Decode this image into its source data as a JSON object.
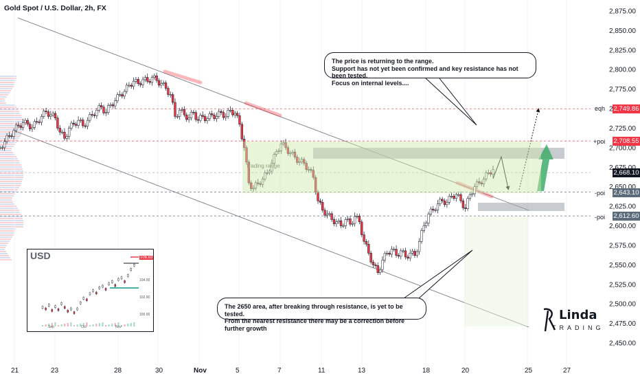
{
  "title": "Gold Spot / U.S. Dollar, 2h, FX",
  "callouts": {
    "top": [
      "The price is returning to the range.",
      "Support has not yet been confirmed and key resistance has not been tested.",
      "Focus on internal levels...."
    ],
    "bottom": [
      "The 2650 area, after breaking through resistance, is yet to be tested.",
      "From the nearest resistance there may be a correction before further growth"
    ]
  },
  "price_tags": [
    {
      "label": "2,749.86",
      "color": "#f23645"
    },
    {
      "label": "2,708.55",
      "color": "#f23645"
    },
    {
      "label": "2,668.10",
      "color": "#131722"
    },
    {
      "label": "2,643.10",
      "color": "#5b6b7a"
    },
    {
      "label": "2,612.60",
      "color": "#5b6b7a"
    }
  ],
  "level_labels": {
    "eqh": "eqh",
    "poi_up": "+poi",
    "poi_mid": "-poi",
    "poi_low": "-poi"
  },
  "zone_text": "Trading range",
  "inset": {
    "title": "USD",
    "badge": "106.83",
    "ticks": [
      "106.00",
      "104.00",
      "102.00",
      "100.00"
    ],
    "x_labels": [
      "Sep",
      "Oct",
      "Nov"
    ]
  },
  "logo": {
    "line1": "Linda",
    "line2": "TRADING"
  },
  "chart_data": {
    "type": "candlestick",
    "title": "Gold Spot / U.S. Dollar, 2h, FX",
    "y_ticks": [
      "2,875.00",
      "2,850.00",
      "2,825.00",
      "2,800.00",
      "2,775.00",
      "2,750.00",
      "2,725.00",
      "2,700.00",
      "2,675.00",
      "2,650.00",
      "2,625.00",
      "2,600.00",
      "2,575.00",
      "2,550.00",
      "2,525.00",
      "2,500.00",
      "2,475.00",
      "2,450.00"
    ],
    "ylim": [
      2440,
      2885
    ],
    "x_ticks": [
      "21",
      "23",
      "28",
      "30",
      "Nov",
      "5",
      "7",
      "11",
      "13",
      "18",
      "20",
      "25",
      "27"
    ],
    "path": [
      [
        0,
        2700
      ],
      [
        2,
        2708
      ],
      [
        4,
        2715
      ],
      [
        6,
        2722
      ],
      [
        8,
        2728
      ],
      [
        10,
        2732
      ],
      [
        12,
        2730
      ],
      [
        14,
        2726
      ],
      [
        16,
        2733
      ],
      [
        18,
        2740
      ],
      [
        20,
        2746
      ],
      [
        22,
        2742
      ],
      [
        24,
        2738
      ],
      [
        26,
        2720
      ],
      [
        28,
        2712
      ],
      [
        30,
        2725
      ],
      [
        32,
        2730
      ],
      [
        34,
        2735
      ],
      [
        36,
        2728
      ],
      [
        38,
        2735
      ],
      [
        40,
        2742
      ],
      [
        42,
        2748
      ],
      [
        44,
        2752
      ],
      [
        46,
        2745
      ],
      [
        48,
        2755
      ],
      [
        50,
        2760
      ],
      [
        52,
        2768
      ],
      [
        54,
        2772
      ],
      [
        56,
        2780
      ],
      [
        58,
        2785
      ],
      [
        60,
        2782
      ],
      [
        62,
        2787
      ],
      [
        64,
        2785
      ],
      [
        66,
        2790
      ],
      [
        68,
        2786
      ],
      [
        70,
        2782
      ],
      [
        72,
        2776
      ],
      [
        74,
        2768
      ],
      [
        76,
        2740
      ],
      [
        78,
        2748
      ],
      [
        80,
        2742
      ],
      [
        82,
        2738
      ],
      [
        84,
        2745
      ],
      [
        86,
        2735
      ],
      [
        88,
        2740
      ],
      [
        90,
        2737
      ],
      [
        92,
        2742
      ],
      [
        94,
        2740
      ],
      [
        96,
        2745
      ],
      [
        98,
        2740
      ],
      [
        100,
        2748
      ],
      [
        102,
        2744
      ],
      [
        104,
        2730
      ],
      [
        106,
        2700
      ],
      [
        108,
        2655
      ],
      [
        110,
        2648
      ],
      [
        112,
        2654
      ],
      [
        114,
        2660
      ],
      [
        116,
        2668
      ],
      [
        118,
        2680
      ],
      [
        120,
        2695
      ],
      [
        122,
        2705
      ],
      [
        124,
        2700
      ],
      [
        126,
        2693
      ],
      [
        128,
        2688
      ],
      [
        130,
        2682
      ],
      [
        132,
        2680
      ],
      [
        134,
        2672
      ],
      [
        136,
        2662
      ],
      [
        138,
        2632
      ],
      [
        140,
        2620
      ],
      [
        142,
        2615
      ],
      [
        144,
        2608
      ],
      [
        146,
        2605
      ],
      [
        148,
        2600
      ],
      [
        150,
        2608
      ],
      [
        152,
        2602
      ],
      [
        154,
        2612
      ],
      [
        156,
        2605
      ],
      [
        158,
        2580
      ],
      [
        160,
        2565
      ],
      [
        162,
        2550
      ],
      [
        164,
        2540
      ],
      [
        166,
        2556
      ],
      [
        168,
        2565
      ],
      [
        170,
        2570
      ],
      [
        172,
        2562
      ],
      [
        174,
        2568
      ],
      [
        176,
        2560
      ],
      [
        178,
        2565
      ],
      [
        180,
        2562
      ],
      [
        182,
        2580
      ],
      [
        184,
        2600
      ],
      [
        186,
        2615
      ],
      [
        188,
        2620
      ],
      [
        190,
        2628
      ],
      [
        192,
        2632
      ],
      [
        194,
        2630
      ],
      [
        196,
        2638
      ],
      [
        198,
        2640
      ],
      [
        200,
        2632
      ],
      [
        202,
        2622
      ],
      [
        204,
        2640
      ],
      [
        206,
        2650
      ],
      [
        208,
        2655
      ],
      [
        210,
        2660
      ],
      [
        212,
        2668
      ],
      [
        214,
        2672
      ]
    ],
    "levels": [
      {
        "name": "eqh",
        "value": 2749.86
      },
      {
        "name": "+poi",
        "value": 2708.55
      },
      {
        "name": "-poi",
        "value": 2643.1
      },
      {
        "name": "-poi",
        "value": 2612.6
      },
      {
        "name": "current",
        "value": 2668.1
      }
    ]
  }
}
